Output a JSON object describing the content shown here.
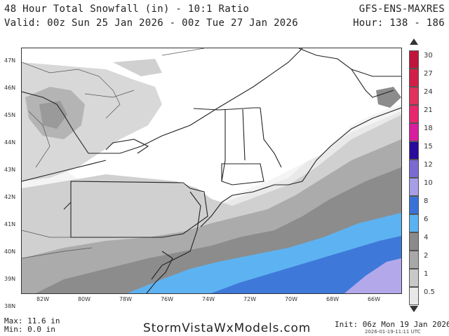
{
  "header": {
    "title": "48 Hour Total Snowfall (in) - 10:1 Ratio",
    "valid": "Valid: 00z Sun 25 Jan 2026 - 00z Tue 27 Jan 2026",
    "model": "GFS-ENS-MAXRES",
    "hour": "Hour: 138 - 186"
  },
  "map": {
    "lat_labels": [
      "47N",
      "46N",
      "45N",
      "44N",
      "43N",
      "42N",
      "41N",
      "40N",
      "39N",
      "38N"
    ],
    "lon_labels": [
      "82W",
      "80W",
      "78W",
      "76W",
      "74W",
      "72W",
      "70W",
      "68W",
      "66W"
    ]
  },
  "legend": {
    "levels": [
      {
        "label": "30",
        "color": "#c0143c"
      },
      {
        "label": "27",
        "color": "#d21e46"
      },
      {
        "label": "24",
        "color": "#e0325a"
      },
      {
        "label": "21",
        "color": "#e8286e"
      },
      {
        "label": "18",
        "color": "#d81e9e"
      },
      {
        "label": "15",
        "color": "#2a0a9a"
      },
      {
        "label": "12",
        "color": "#7a6ad2"
      },
      {
        "label": "10",
        "color": "#a79ee6"
      },
      {
        "label": "8",
        "color": "#3a72d8"
      },
      {
        "label": "6",
        "color": "#5ab2f2"
      },
      {
        "label": "4",
        "color": "#8a8a8a"
      },
      {
        "label": "2",
        "color": "#a8a8a8"
      },
      {
        "label": "1",
        "color": "#c8c8c8"
      },
      {
        "label": "0.5",
        "color": "#e8e8e8"
      }
    ]
  },
  "footer": {
    "max": "Max: 11.6 in",
    "min": "Min: 0.0 in",
    "site": "StormVistaWxModels.com",
    "init": "Init: 06z Mon 19 Jan 2026",
    "stamp": "2026-01-19-11:11 UTC"
  }
}
